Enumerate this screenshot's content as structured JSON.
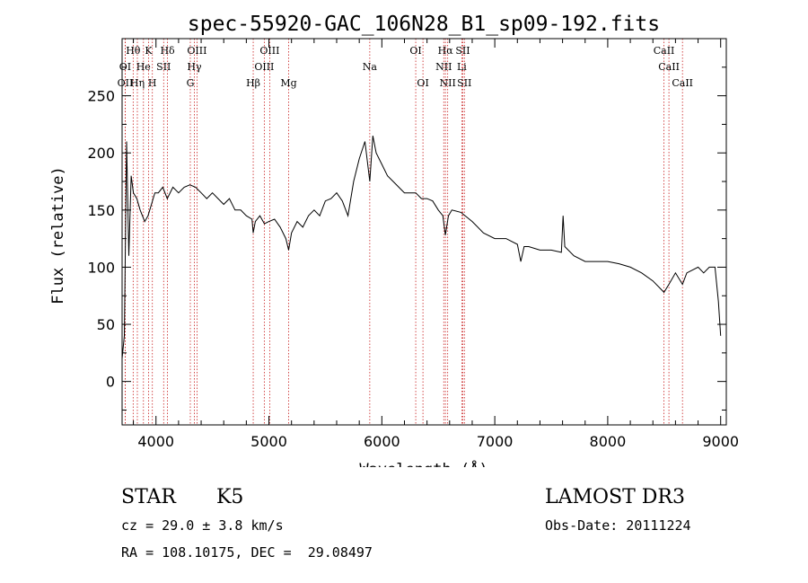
{
  "chart_data": {
    "type": "line",
    "title": "spec-55920-GAC_106N28_B1_sp09-192.fits",
    "xlabel": "Wavelength (Å)",
    "ylabel": "Flux (relative)",
    "xlim": [
      3700,
      9050
    ],
    "ylim": [
      -38,
      300
    ],
    "xticks": [
      4000,
      5000,
      6000,
      7000,
      8000,
      9000
    ],
    "yticks": [
      0,
      50,
      100,
      150,
      200,
      250
    ],
    "grid": false,
    "series": [
      {
        "name": "spectrum",
        "x": [
          3700,
          3720,
          3740,
          3760,
          3780,
          3800,
          3830,
          3860,
          3900,
          3930,
          3960,
          3990,
          4020,
          4060,
          4100,
          4150,
          4200,
          4250,
          4300,
          4350,
          4400,
          4450,
          4500,
          4550,
          4600,
          4650,
          4700,
          4750,
          4800,
          4850,
          4861,
          4880,
          4920,
          4960,
          5000,
          5050,
          5100,
          5150,
          5175,
          5200,
          5250,
          5300,
          5350,
          5400,
          5450,
          5500,
          5550,
          5600,
          5650,
          5700,
          5750,
          5800,
          5850,
          5893,
          5920,
          5950,
          6000,
          6050,
          6100,
          6150,
          6200,
          6250,
          6300,
          6350,
          6400,
          6450,
          6500,
          6540,
          6563,
          6590,
          6620,
          6700,
          6800,
          6900,
          7000,
          7100,
          7200,
          7230,
          7260,
          7300,
          7400,
          7500,
          7590,
          7605,
          7620,
          7700,
          7800,
          7900,
          8000,
          8100,
          8200,
          8300,
          8400,
          8498,
          8542,
          8600,
          8662,
          8700,
          8800,
          8850,
          8900,
          8950,
          8980,
          9000
        ],
        "y": [
          20,
          40,
          210,
          110,
          180,
          165,
          160,
          150,
          140,
          145,
          155,
          165,
          165,
          170,
          160,
          170,
          165,
          170,
          172,
          170,
          165,
          160,
          165,
          160,
          155,
          160,
          150,
          150,
          145,
          142,
          130,
          140,
          145,
          138,
          140,
          142,
          135,
          125,
          115,
          130,
          140,
          135,
          145,
          150,
          145,
          158,
          160,
          165,
          158,
          145,
          175,
          195,
          210,
          175,
          215,
          200,
          190,
          180,
          175,
          170,
          165,
          165,
          165,
          160,
          160,
          158,
          150,
          145,
          128,
          145,
          150,
          148,
          140,
          130,
          125,
          125,
          120,
          105,
          118,
          118,
          115,
          115,
          113,
          145,
          118,
          110,
          105,
          105,
          105,
          103,
          100,
          95,
          88,
          78,
          85,
          95,
          85,
          95,
          100,
          95,
          100,
          100,
          70,
          40
        ]
      }
    ],
    "line_markers": {
      "row1": [
        {
          "label": "Hθ",
          "x": 3798
        },
        {
          "label": "K",
          "x": 3934
        },
        {
          "label": "Hδ",
          "x": 4102
        },
        {
          "label": "OIII",
          "x": 4363
        },
        {
          "label": "OIII",
          "x": 5007
        },
        {
          "label": "OI",
          "x": 6300
        },
        {
          "label": "Hα",
          "x": 6563
        },
        {
          "label": "SII",
          "x": 6717
        },
        {
          "label": "CaII",
          "x": 8498
        }
      ],
      "row2": [
        {
          "label": "OI",
          "x": 3727
        },
        {
          "label": "He",
          "x": 3889
        },
        {
          "label": "SII",
          "x": 4068
        },
        {
          "label": "Hγ",
          "x": 4340
        },
        {
          "label": "OIII",
          "x": 4959
        },
        {
          "label": "Na",
          "x": 5893
        },
        {
          "label": "NII",
          "x": 6548
        },
        {
          "label": "Li",
          "x": 6708
        },
        {
          "label": "CaII",
          "x": 8542
        }
      ],
      "row3": [
        {
          "label": "OII",
          "x": 3728
        },
        {
          "label": "Hη",
          "x": 3835
        },
        {
          "label": "H",
          "x": 3968
        },
        {
          "label": "G",
          "x": 4304
        },
        {
          "label": "Hβ",
          "x": 4861
        },
        {
          "label": "Mg",
          "x": 5175
        },
        {
          "label": "OI",
          "x": 6364
        },
        {
          "label": "NII",
          "x": 6583
        },
        {
          "label": "SII",
          "x": 6731
        },
        {
          "label": "CaII",
          "x": 8662
        }
      ]
    }
  },
  "info": {
    "object_class": "STAR",
    "subclass": "K5",
    "survey": "LAMOST DR3",
    "redshift": "cz = 29.0 ± 3.8 km/s",
    "obs_date": "Obs-Date: 20111224",
    "coords": "RA = 108.10175, DEC =  29.08497"
  }
}
